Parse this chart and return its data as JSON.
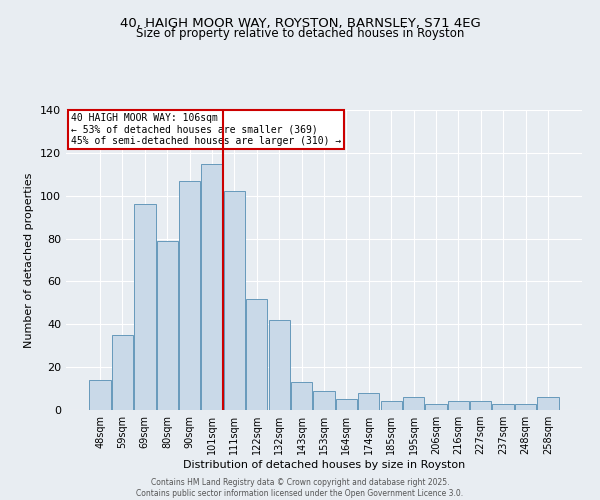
{
  "title_line1": "40, HAIGH MOOR WAY, ROYSTON, BARNSLEY, S71 4EG",
  "title_line2": "Size of property relative to detached houses in Royston",
  "xlabel": "Distribution of detached houses by size in Royston",
  "ylabel": "Number of detached properties",
  "bar_labels": [
    "48sqm",
    "59sqm",
    "69sqm",
    "80sqm",
    "90sqm",
    "101sqm",
    "111sqm",
    "122sqm",
    "132sqm",
    "143sqm",
    "153sqm",
    "164sqm",
    "174sqm",
    "185sqm",
    "195sqm",
    "206sqm",
    "216sqm",
    "227sqm",
    "237sqm",
    "248sqm",
    "258sqm"
  ],
  "bar_values": [
    14,
    35,
    96,
    79,
    107,
    115,
    102,
    52,
    42,
    13,
    9,
    5,
    8,
    4,
    6,
    3,
    4,
    4,
    3,
    3,
    6
  ],
  "bar_color": "#c9d9e8",
  "bar_edge_color": "#6699bb",
  "vline_x_index": 5.5,
  "vline_color": "#cc0000",
  "annotation_line1": "40 HAIGH MOOR WAY: 106sqm",
  "annotation_line2": "← 53% of detached houses are smaller (369)",
  "annotation_line3": "45% of semi-detached houses are larger (310) →",
  "annotation_box_color": "#ffffff",
  "annotation_box_edge_color": "#cc0000",
  "ylim": [
    0,
    140
  ],
  "yticks": [
    0,
    20,
    40,
    60,
    80,
    100,
    120,
    140
  ],
  "background_color": "#e8edf2",
  "grid_color": "#ffffff",
  "footer_line1": "Contains HM Land Registry data © Crown copyright and database right 2025.",
  "footer_line2": "Contains public sector information licensed under the Open Government Licence 3.0."
}
